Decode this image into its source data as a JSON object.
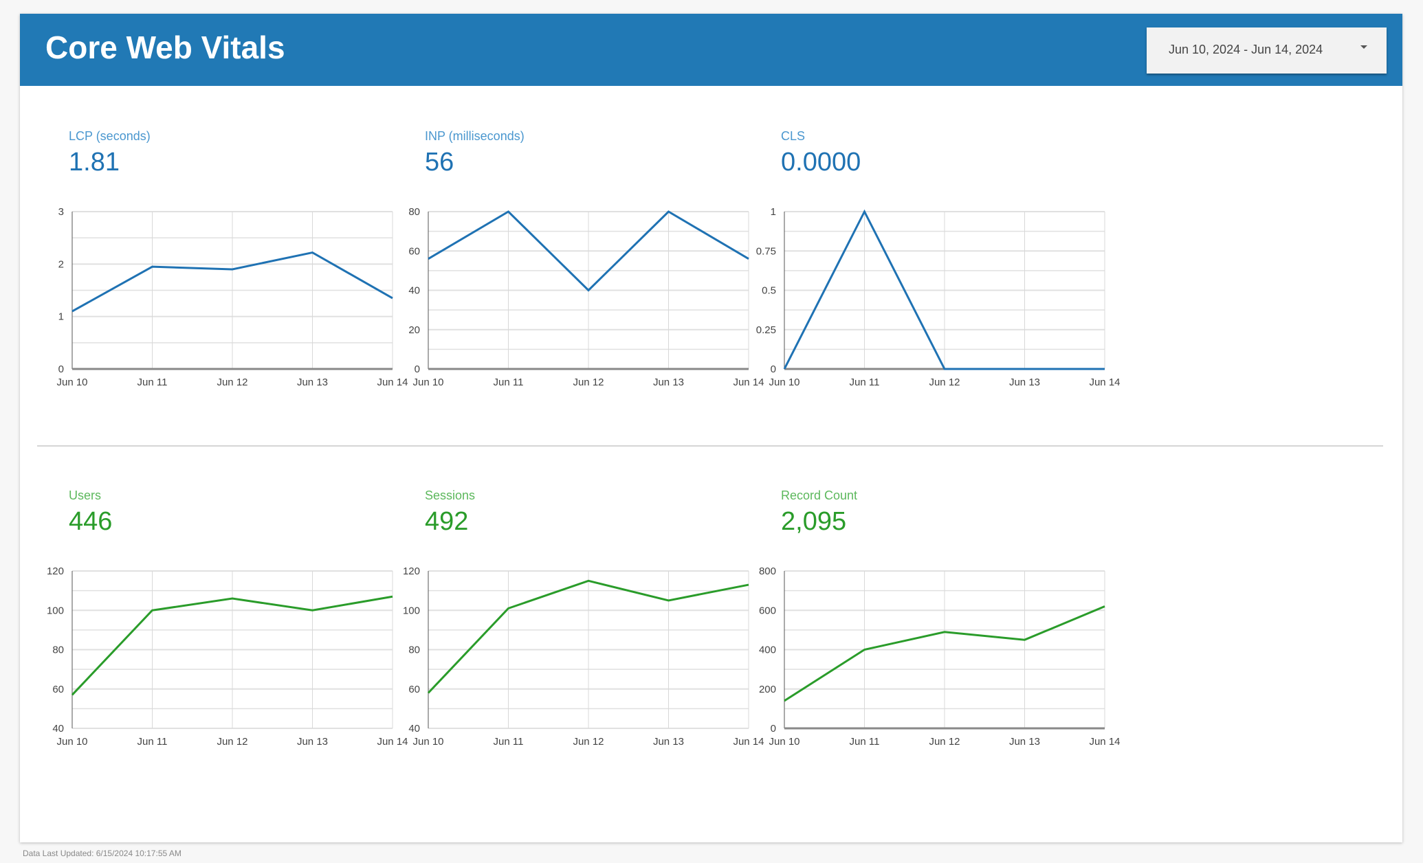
{
  "header": {
    "title": "Core Web Vitals",
    "date_range": "Jun 10, 2024 - Jun 14, 2024",
    "dropdown_icon": "caret-down-icon"
  },
  "colors": {
    "header": "#2179b5",
    "blue_series": "#1f72b3",
    "green_series": "#2a9c2a"
  },
  "metrics": [
    {
      "label": "LCP (seconds)",
      "value": "1.81"
    },
    {
      "label": "INP (milliseconds)",
      "value": "56"
    },
    {
      "label": "CLS",
      "value": "0.0000"
    },
    {
      "label": "Users",
      "value": "446"
    },
    {
      "label": "Sessions",
      "value": "492"
    },
    {
      "label": "Record Count",
      "value": "2,095"
    }
  ],
  "chart_data": [
    {
      "type": "line",
      "categories": [
        "Jun 10",
        "Jun 11",
        "Jun 12",
        "Jun 13",
        "Jun 14"
      ],
      "values": [
        1.1,
        1.95,
        1.9,
        2.22,
        1.35
      ],
      "ylim": [
        0,
        3
      ],
      "yticks": [
        "0",
        "1",
        "2",
        "3"
      ],
      "grid": true,
      "color": "#1f72b3"
    },
    {
      "type": "line",
      "categories": [
        "Jun 10",
        "Jun 11",
        "Jun 12",
        "Jun 13",
        "Jun 14"
      ],
      "values": [
        56,
        80,
        40,
        80,
        56
      ],
      "ylim": [
        0,
        80
      ],
      "yticks": [
        "0",
        "20",
        "40",
        "60",
        "80"
      ],
      "grid": true,
      "color": "#1f72b3"
    },
    {
      "type": "line",
      "categories": [
        "Jun 10",
        "Jun 11",
        "Jun 12",
        "Jun 13",
        "Jun 14"
      ],
      "values": [
        0,
        1,
        0,
        0,
        0
      ],
      "ylim": [
        0,
        1
      ],
      "yticks": [
        "0",
        "0.25",
        "0.5",
        "0.75",
        "1"
      ],
      "grid": true,
      "color": "#1f72b3"
    },
    {
      "type": "line",
      "categories": [
        "Jun 10",
        "Jun 11",
        "Jun 12",
        "Jun 13",
        "Jun 14"
      ],
      "values": [
        57,
        100,
        106,
        100,
        107
      ],
      "ylim": [
        40,
        120
      ],
      "yticks": [
        "40",
        "60",
        "80",
        "100",
        "120"
      ],
      "grid": true,
      "color": "#2a9c2a"
    },
    {
      "type": "line",
      "categories": [
        "Jun 10",
        "Jun 11",
        "Jun 12",
        "Jun 13",
        "Jun 14"
      ],
      "values": [
        58,
        101,
        115,
        105,
        113
      ],
      "ylim": [
        40,
        120
      ],
      "yticks": [
        "40",
        "60",
        "80",
        "100",
        "120"
      ],
      "grid": true,
      "color": "#2a9c2a"
    },
    {
      "type": "line",
      "categories": [
        "Jun 10",
        "Jun 11",
        "Jun 12",
        "Jun 13",
        "Jun 14"
      ],
      "values": [
        140,
        400,
        490,
        450,
        620
      ],
      "ylim": [
        0,
        800
      ],
      "yticks": [
        "0",
        "200",
        "400",
        "600",
        "800"
      ],
      "grid": true,
      "color": "#2a9c2a"
    }
  ],
  "footer": {
    "text": "Data Last Updated: 6/15/2024 10:17:55 AM"
  }
}
